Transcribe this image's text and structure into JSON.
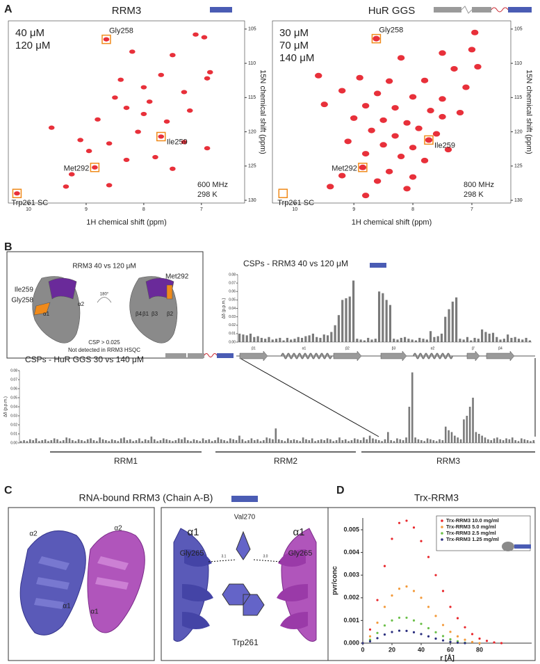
{
  "panel_labels": [
    "A",
    "B",
    "C",
    "D"
  ],
  "chart_data": [
    {
      "type": "spectrum",
      "title": "RRM3",
      "x_label": "1H chemical shift (ppm)",
      "y_label": "15N chemical shift (ppm)",
      "xlim": [
        10.35,
        6.25
      ],
      "ylim": [
        130.4,
        103.8
      ],
      "xticks": [
        10,
        9,
        8,
        7
      ],
      "yticks": [
        105,
        110,
        115,
        120,
        125,
        130
      ],
      "annotations": [
        "600 MHz",
        "298 K"
      ],
      "series": [
        {
          "name": "40 μM",
          "color": "#e8303a",
          "x": [
            8.65,
            7.7,
            8.85,
            10.2,
            7.1,
            6.95,
            8.2,
            7.5,
            6.85,
            6.9,
            7.7,
            8.0,
            7.3,
            8.5,
            7.9,
            8.3,
            7.2,
            9.6,
            8.8,
            7.6,
            8.1,
            8.6,
            9.1,
            7.3,
            8.95,
            7.8,
            8.3,
            9.25,
            7.5,
            8.6,
            9.35,
            6.9,
            8.4,
            8.0
          ],
          "values": [
            106.5,
            120.7,
            125.2,
            129.0,
            105.8,
            106.2,
            108.3,
            108.8,
            111.3,
            112.2,
            111.7,
            113.5,
            114.2,
            115.0,
            115.6,
            116.5,
            116.9,
            119.4,
            118.2,
            118.5,
            120.0,
            121.7,
            121.2,
            121.5,
            122.8,
            123.7,
            124.1,
            126.2,
            125.4,
            127.8,
            128.0,
            122.4,
            112.4,
            117.4
          ]
        },
        {
          "name": "120 μM",
          "color": "#3a4fa8",
          "x": [
            8.65,
            7.7,
            8.85,
            10.2,
            7.1,
            6.95,
            8.2,
            7.5,
            6.85,
            6.9,
            7.7,
            8.0,
            7.3,
            8.5,
            7.9,
            8.3,
            7.2,
            9.6,
            8.8,
            7.6,
            8.1,
            8.6,
            9.1,
            7.3,
            8.95,
            7.8,
            8.3,
            9.25,
            7.5,
            8.6,
            9.35,
            6.9,
            8.4,
            8.0
          ],
          "values": [
            106.5,
            120.7,
            125.2,
            129.0,
            105.8,
            106.2,
            108.3,
            108.8,
            111.3,
            112.2,
            111.7,
            113.5,
            114.2,
            115.0,
            115.6,
            116.5,
            116.9,
            119.4,
            118.2,
            118.5,
            120.0,
            121.7,
            121.2,
            121.5,
            122.8,
            123.7,
            124.1,
            126.2,
            125.4,
            127.8,
            128.0,
            122.4,
            112.4,
            117.4
          ]
        }
      ],
      "peak_labels": [
        {
          "text": "Gly258",
          "x": 8.65,
          "y": 106.5
        },
        {
          "text": "Ile259",
          "x": 7.7,
          "y": 120.7
        },
        {
          "text": "Met292",
          "x": 8.85,
          "y": 125.2
        },
        {
          "text": "Trp261 SC",
          "x": 10.2,
          "y": 129.0
        }
      ]
    },
    {
      "type": "spectrum",
      "title": "HuR GGS",
      "x_label": "1H chemical shift (ppm)",
      "y_label": "15N chemical shift (ppm)",
      "xlim": [
        10.38,
        6.34
      ],
      "ylim": [
        130.4,
        103.8
      ],
      "xticks": [
        10,
        9,
        8,
        7
      ],
      "yticks": [
        105,
        110,
        115,
        120,
        125,
        130
      ],
      "annotations": [
        "800 MHz",
        "298 K"
      ],
      "series": [
        {
          "name": "30 μM",
          "color": "#e8303a",
          "x": [
            8.62,
            6.95,
            7.0,
            7.5,
            8.2,
            6.9,
            7.3,
            9.6,
            8.9,
            8.4,
            7.8,
            7.1,
            9.2,
            8.6,
            8.0,
            7.5,
            8.8,
            8.3,
            7.7,
            7.2,
            9.0,
            8.5,
            8.1,
            7.9,
            8.7,
            7.6,
            8.3,
            7.73,
            9.1,
            8.5,
            8.0,
            7.4,
            8.8,
            8.2,
            7.8,
            8.85,
            8.4,
            9.2,
            8.0,
            8.6,
            9.4,
            8.1,
            8.8,
            7.5,
            9.5
          ],
          "values": [
            106.4,
            105.5,
            108.0,
            108.5,
            109.2,
            110.5,
            110.8,
            111.8,
            112.1,
            112.6,
            112.5,
            113.5,
            114.0,
            114.4,
            114.9,
            115.2,
            116.2,
            116.5,
            116.9,
            117.2,
            118.0,
            118.3,
            118.7,
            119.5,
            119.8,
            120.3,
            120.6,
            121.2,
            121.4,
            121.9,
            122.3,
            122.6,
            123.2,
            123.6,
            124.2,
            125.2,
            125.8,
            126.4,
            126.6,
            127.2,
            128.0,
            128.3,
            129.3,
            117.8,
            116.0
          ]
        },
        {
          "name": "70 μM",
          "color": "#2f8f57",
          "x": [
            8.62,
            6.95,
            7.0,
            7.5,
            8.2,
            6.9,
            7.3,
            9.6,
            8.9,
            8.4,
            7.8,
            7.1,
            9.2,
            8.6,
            8.0,
            7.5,
            8.8,
            8.3,
            7.7,
            7.2,
            9.0,
            8.5,
            8.1,
            7.9,
            8.7,
            7.6,
            8.3,
            7.73,
            9.1,
            8.5,
            8.0,
            7.4,
            8.8,
            8.2,
            7.8,
            8.85,
            8.4,
            9.2,
            8.0,
            8.6,
            9.4,
            8.1,
            8.8,
            7.5,
            9.5
          ],
          "values": [
            106.4,
            105.5,
            108.0,
            108.5,
            109.2,
            110.5,
            110.8,
            111.8,
            112.1,
            112.6,
            112.5,
            113.5,
            114.0,
            114.4,
            114.9,
            115.2,
            116.2,
            116.5,
            116.9,
            117.2,
            118.0,
            118.3,
            118.7,
            119.5,
            119.8,
            120.3,
            120.6,
            121.2,
            121.4,
            121.9,
            122.3,
            122.6,
            123.2,
            123.6,
            124.2,
            125.2,
            125.8,
            126.4,
            126.6,
            127.2,
            128.0,
            128.3,
            129.3,
            117.8,
            116.0
          ]
        },
        {
          "name": "140 μM",
          "color": "#3a4fa8",
          "x": [
            8.62,
            6.95,
            7.0,
            7.5,
            8.2,
            6.9,
            7.3,
            9.6,
            8.9,
            8.4,
            7.8,
            7.1,
            9.2,
            8.6,
            8.0,
            7.5,
            8.8,
            8.3,
            7.7,
            7.2,
            9.0,
            8.5,
            8.1,
            7.9,
            8.7,
            7.6,
            8.3,
            7.73,
            9.1,
            8.5,
            8.0,
            7.4,
            8.8,
            8.2,
            7.8,
            8.85,
            8.4,
            9.2,
            8.0,
            8.6,
            9.4,
            8.1,
            8.8,
            7.5,
            9.5
          ],
          "values": [
            106.4,
            105.5,
            108.0,
            108.5,
            109.2,
            110.5,
            110.8,
            111.8,
            112.1,
            112.6,
            112.5,
            113.5,
            114.0,
            114.4,
            114.9,
            115.2,
            116.2,
            116.5,
            116.9,
            117.2,
            118.0,
            118.3,
            118.7,
            119.5,
            119.8,
            120.3,
            120.6,
            121.2,
            121.4,
            121.9,
            122.3,
            122.6,
            123.2,
            123.6,
            124.2,
            125.2,
            125.8,
            126.4,
            126.6,
            127.2,
            128.0,
            128.3,
            129.3,
            117.8,
            116.0
          ]
        }
      ],
      "peak_labels": [
        {
          "text": "Gly258",
          "x": 8.62,
          "y": 106.4
        },
        {
          "text": "Ile259",
          "x": 7.73,
          "y": 121.2
        },
        {
          "text": "Met292",
          "x": 8.85,
          "y": 125.2
        },
        {
          "text": "Trp261 SC",
          "x": 10.2,
          "y": 129.0
        }
      ]
    },
    {
      "type": "bar",
      "title": "CSPs - RRM3 40 vs 120 μM",
      "y_label": "Δδ (p.p.m.)",
      "color": "#7a7a7a",
      "ylim": [
        0,
        0.08
      ],
      "yticks": [
        {
          "value": 0,
          "label": "0.00"
        },
        0.01,
        0.02,
        0.03,
        0.04,
        0.05,
        0.06,
        0.07,
        0.08
      ],
      "values": [
        0.01,
        0.009,
        0.008,
        0.01,
        0.006,
        0.007,
        0.005,
        0.004,
        0.006,
        0.003,
        0.004,
        0.005,
        0.002,
        0.005,
        0.003,
        0.004,
        0.006,
        0.005,
        0.007,
        0.008,
        0.01,
        0.006,
        0.005,
        0.009,
        0.008,
        0.012,
        0.02,
        0.032,
        0.05,
        0.052,
        0.054,
        0.073,
        0.004,
        0.003,
        0.002,
        0.005,
        0.003,
        0.004,
        0.06,
        0.058,
        0.05,
        0.044,
        0.004,
        0.003,
        0.005,
        0.006,
        0.004,
        0.003,
        0.002,
        0.005,
        0.004,
        0.003,
        0.013,
        0.006,
        0.007,
        0.01,
        0.03,
        0.039,
        0.048,
        0.053,
        0.004,
        0.003,
        0.006,
        0.002,
        0.005,
        0.004,
        0.015,
        0.012,
        0.01,
        0.011,
        0.006,
        0.003,
        0.004,
        0.009,
        0.005,
        0.006,
        0.004,
        0.003,
        0.005,
        0.002
      ]
    },
    {
      "type": "bar",
      "title": "CSPs - HuR GGS 30 vs 140 μM",
      "y_label": "Δδ (p.p.m.)",
      "color": "#7a7a7a",
      "ylim": [
        0,
        0.08
      ],
      "yticks": [
        {
          "value": 0,
          "label": "0.00"
        },
        0.01,
        0.02,
        0.03,
        0.04,
        0.05,
        0.06,
        0.07,
        0.08
      ],
      "values": [
        0.002,
        0.003,
        0.002,
        0.004,
        0.003,
        0.005,
        0.002,
        0.003,
        0.004,
        0.002,
        0.003,
        0.005,
        0.004,
        0.002,
        0.003,
        0.006,
        0.005,
        0.003,
        0.002,
        0.004,
        0.003,
        0.002,
        0.004,
        0.005,
        0.003,
        0.002,
        0.006,
        0.004,
        0.003,
        0.002,
        0.004,
        0.003,
        0.002,
        0.005,
        0.006,
        0.003,
        0.004,
        0.002,
        0.003,
        0.005,
        0.002,
        0.004,
        0.003,
        0.007,
        0.004,
        0.002,
        0.003,
        0.005,
        0.004,
        0.003,
        0.002,
        0.003,
        0.005,
        0.004,
        0.006,
        0.003,
        0.002,
        0.004,
        0.003,
        0.002,
        0.005,
        0.003,
        0.004,
        0.002,
        0.003,
        0.006,
        0.004,
        0.003,
        0.002,
        0.005,
        0.004,
        0.003,
        0.008,
        0.004,
        0.002,
        0.003,
        0.005,
        0.003,
        0.004,
        0.002,
        0.003,
        0.006,
        0.005,
        0.004,
        0.016,
        0.004,
        0.003,
        0.002,
        0.005,
        0.003,
        0.004,
        0.003,
        0.002,
        0.006,
        0.004,
        0.003,
        0.005,
        0.002,
        0.003,
        0.004,
        0.003,
        0.005,
        0.004,
        0.002,
        0.003,
        0.006,
        0.003,
        0.004,
        0.002,
        0.003,
        0.005,
        0.004,
        0.003,
        0.006,
        0.004,
        0.008,
        0.005,
        0.004,
        0.003,
        0.002,
        0.004,
        0.012,
        0.003,
        0.002,
        0.005,
        0.004,
        0.003,
        0.006,
        0.04,
        0.078,
        0.006,
        0.004,
        0.003,
        0.002,
        0.005,
        0.004,
        0.003,
        0.002,
        0.004,
        0.003,
        0.018,
        0.014,
        0.012,
        0.008,
        0.006,
        0.004,
        0.026,
        0.03,
        0.04,
        0.05,
        0.012,
        0.01,
        0.008,
        0.006,
        0.004,
        0.003,
        0.005,
        0.006,
        0.004,
        0.003,
        0.005,
        0.004,
        0.006,
        0.003,
        0.002,
        0.005,
        0.004,
        0.003,
        0.002,
        0.003
      ],
      "domains": [
        "RRM1",
        "RRM2",
        "RRM3"
      ]
    },
    {
      "type": "scatter",
      "title": "Trx-RRM3",
      "x_label": "r [Å]",
      "y_label": "pvr/conc",
      "legend": "upper right",
      "xlim": [
        0,
        115.7
      ],
      "ylim": [
        0,
        0.00552
      ],
      "xticks": [
        0,
        20,
        40,
        60,
        80
      ],
      "yticks": [
        {
          "value": 0,
          "label": "0.000"
        },
        0.001,
        0.002,
        0.003,
        0.004,
        0.005
      ],
      "x": [
        0,
        5,
        10,
        15,
        20,
        25,
        30,
        35,
        40,
        45,
        50,
        55,
        60,
        65,
        70,
        75,
        80,
        85,
        90,
        95
      ],
      "series": [
        {
          "name": "Trx-RRM3 10.0 mg/ml",
          "color": "#e8262b",
          "values": [
            0,
            0.0006,
            0.0019,
            0.0034,
            0.0046,
            0.0053,
            0.0054,
            0.0051,
            0.0045,
            0.0038,
            0.003,
            0.0023,
            0.0016,
            0.0011,
            0.0007,
            0.0004,
            0.0002,
            0.0001,
            3e-05,
            0
          ]
        },
        {
          "name": "Trx-RRM3 5.0 mg/ml",
          "color": "#f39a3b",
          "values": [
            0,
            0.0003,
            0.0009,
            0.0016,
            0.0021,
            0.0024,
            0.0025,
            0.0023,
            0.002,
            0.0016,
            0.0012,
            0.0008,
            0.0005,
            0.0003,
            0.00015,
            5e-05,
            0,
            null,
            null,
            null
          ]
        },
        {
          "name": "Trx-RRM3 2.5 mg/ml",
          "color": "#6cc04a",
          "values": [
            0,
            0.00015,
            0.00045,
            0.00078,
            0.001,
            0.00112,
            0.00112,
            0.001,
            0.00085,
            0.00066,
            0.00048,
            0.00031,
            0.00017,
            8e-05,
            2e-05,
            null,
            null,
            null,
            null,
            null
          ]
        },
        {
          "name": "Trx-RRM3 1.25 mg/ml",
          "color": "#2b2f7e",
          "values": [
            0,
            8e-05,
            0.00022,
            0.00038,
            0.00049,
            0.00055,
            0.00054,
            0.00048,
            0.0004,
            0.0003,
            0.0002,
            0.00012,
            6e-05,
            2e-05,
            0,
            null,
            null,
            null,
            null,
            null
          ]
        }
      ]
    }
  ],
  "panel_b": {
    "inset_title": "RRM3 40 vs 120 μM",
    "rotation": "180°",
    "labels": [
      "Ile259",
      "Gly258",
      "Met292",
      "α1",
      "α2",
      "β4",
      "β1",
      "β3",
      "β2"
    ],
    "legend": [
      "CSP > 0.025",
      "Not detected in RRM3 HSQC"
    ],
    "secondary_structure": [
      "β1",
      "α1",
      "β2",
      "β3",
      "α2",
      "β'",
      "β4"
    ]
  },
  "panel_c": {
    "title": "RNA-bound RRM3 (Chain A-B)",
    "left_labels": [
      "α2",
      "α2",
      "α1",
      "α1"
    ],
    "right_labels": [
      "Val270",
      "α1",
      "α1",
      "Gly265",
      "Gly265",
      "Trp261"
    ],
    "distances": [
      "3.1",
      "3.0"
    ]
  }
}
